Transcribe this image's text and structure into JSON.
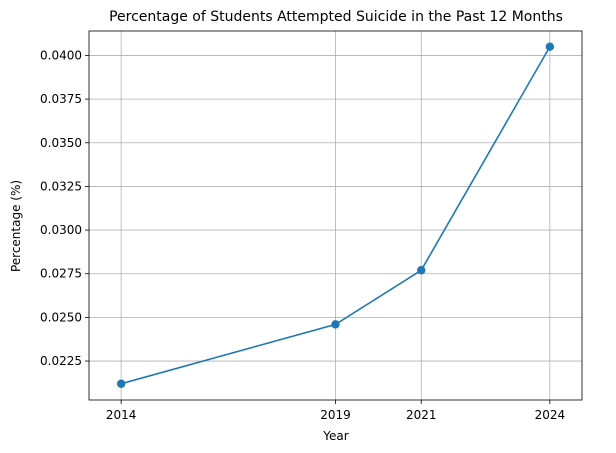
{
  "chart_data": {
    "type": "line",
    "title": "Percentage of Students Attempted Suicide in the Past 12 Months",
    "xlabel": "Year",
    "ylabel": "Percentage (%)",
    "x": [
      2014,
      2019,
      2021,
      2024
    ],
    "xticks": [
      "2014",
      "2019",
      "2021",
      "2024"
    ],
    "xlim": [
      2013.25,
      2024.75
    ],
    "yticks": [
      "0.0225",
      "0.0250",
      "0.0275",
      "0.0300",
      "0.0325",
      "0.0350",
      "0.0375",
      "0.0400"
    ],
    "ylim": [
      0.02027,
      0.0414
    ],
    "grid": true,
    "series": [
      {
        "values": [
          0.0212,
          0.0246,
          0.0277,
          0.0405
        ],
        "color": "#1f77b4",
        "marker": "circle"
      }
    ]
  }
}
